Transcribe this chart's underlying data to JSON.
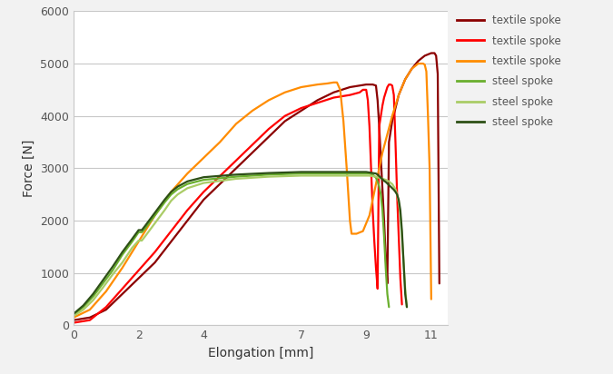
{
  "title": "",
  "xlabel": "Elongation [mm]",
  "ylabel": "Force [N]",
  "xlim": [
    0,
    11.5
  ],
  "ylim": [
    0,
    6000
  ],
  "xticks": [
    0,
    2,
    4,
    7,
    9,
    11
  ],
  "yticks": [
    0,
    1000,
    2000,
    3000,
    4000,
    5000,
    6000
  ],
  "series": [
    {
      "label": "textile spoke",
      "color": "#8B0000",
      "linewidth": 1.6,
      "points": [
        [
          0,
          100
        ],
        [
          0.5,
          150
        ],
        [
          1,
          300
        ],
        [
          1.5,
          600
        ],
        [
          2,
          900
        ],
        [
          2.5,
          1200
        ],
        [
          3,
          1600
        ],
        [
          3.5,
          2000
        ],
        [
          4,
          2400
        ],
        [
          4.5,
          2700
        ],
        [
          5,
          3000
        ],
        [
          5.5,
          3300
        ],
        [
          6,
          3600
        ],
        [
          6.5,
          3900
        ],
        [
          7,
          4100
        ],
        [
          7.5,
          4300
        ],
        [
          8,
          4450
        ],
        [
          8.5,
          4550
        ],
        [
          9.0,
          4600
        ],
        [
          9.1,
          4600
        ],
        [
          9.2,
          4600
        ],
        [
          9.3,
          4580
        ],
        [
          9.35,
          4300
        ],
        [
          9.4,
          3800
        ],
        [
          9.45,
          3200
        ],
        [
          9.5,
          2600
        ],
        [
          9.55,
          2000
        ],
        [
          9.6,
          1300
        ],
        [
          9.65,
          800
        ],
        [
          9.7,
          3500
        ],
        [
          9.8,
          3900
        ],
        [
          10.0,
          4400
        ],
        [
          10.2,
          4700
        ],
        [
          10.4,
          4900
        ],
        [
          10.6,
          5050
        ],
        [
          10.8,
          5150
        ],
        [
          11.0,
          5200
        ],
        [
          11.1,
          5200
        ],
        [
          11.15,
          5150
        ],
        [
          11.2,
          4800
        ],
        [
          11.25,
          800
        ]
      ]
    },
    {
      "label": "textile spoke",
      "color": "#FF0000",
      "linewidth": 1.6,
      "points": [
        [
          0,
          50
        ],
        [
          0.5,
          100
        ],
        [
          1,
          350
        ],
        [
          1.5,
          700
        ],
        [
          2,
          1050
        ],
        [
          2.5,
          1400
        ],
        [
          3,
          1800
        ],
        [
          3.5,
          2200
        ],
        [
          4,
          2550
        ],
        [
          4.5,
          2850
        ],
        [
          5,
          3150
        ],
        [
          5.5,
          3450
        ],
        [
          6,
          3750
        ],
        [
          6.5,
          4000
        ],
        [
          7,
          4150
        ],
        [
          7.5,
          4250
        ],
        [
          8,
          4350
        ],
        [
          8.5,
          4400
        ],
        [
          8.8,
          4450
        ],
        [
          8.9,
          4500
        ],
        [
          9.0,
          4500
        ],
        [
          9.05,
          4300
        ],
        [
          9.1,
          3800
        ],
        [
          9.15,
          3000
        ],
        [
          9.2,
          2200
        ],
        [
          9.25,
          1600
        ],
        [
          9.3,
          1100
        ],
        [
          9.35,
          700
        ],
        [
          9.4,
          3800
        ],
        [
          9.5,
          4200
        ],
        [
          9.55,
          4350
        ],
        [
          9.6,
          4450
        ],
        [
          9.65,
          4550
        ],
        [
          9.7,
          4600
        ],
        [
          9.75,
          4600
        ],
        [
          9.8,
          4580
        ],
        [
          9.85,
          4400
        ],
        [
          9.9,
          3500
        ],
        [
          9.95,
          2500
        ],
        [
          10.0,
          1700
        ],
        [
          10.05,
          900
        ],
        [
          10.1,
          400
        ]
      ]
    },
    {
      "label": "textile spoke",
      "color": "#FF8C00",
      "linewidth": 1.6,
      "points": [
        [
          0,
          150
        ],
        [
          0.5,
          300
        ],
        [
          1,
          650
        ],
        [
          1.5,
          1100
        ],
        [
          2,
          1600
        ],
        [
          2.5,
          2100
        ],
        [
          3,
          2550
        ],
        [
          3.5,
          2900
        ],
        [
          4,
          3200
        ],
        [
          4.5,
          3500
        ],
        [
          5,
          3850
        ],
        [
          5.5,
          4100
        ],
        [
          6,
          4300
        ],
        [
          6.5,
          4450
        ],
        [
          7,
          4550
        ],
        [
          7.5,
          4600
        ],
        [
          7.8,
          4620
        ],
        [
          8.0,
          4640
        ],
        [
          8.1,
          4640
        ],
        [
          8.2,
          4500
        ],
        [
          8.3,
          3900
        ],
        [
          8.4,
          3000
        ],
        [
          8.45,
          2500
        ],
        [
          8.5,
          2000
        ],
        [
          8.55,
          1750
        ],
        [
          8.7,
          1750
        ],
        [
          8.9,
          1800
        ],
        [
          9.1,
          2100
        ],
        [
          9.3,
          2700
        ],
        [
          9.5,
          3300
        ],
        [
          9.8,
          4000
        ],
        [
          10.0,
          4400
        ],
        [
          10.2,
          4700
        ],
        [
          10.4,
          4900
        ],
        [
          10.6,
          5000
        ],
        [
          10.75,
          5000
        ],
        [
          10.8,
          4980
        ],
        [
          10.85,
          4850
        ],
        [
          10.9,
          4000
        ],
        [
          10.95,
          3000
        ],
        [
          11.0,
          500
        ]
      ]
    },
    {
      "label": "steel spoke",
      "color": "#6AAF2E",
      "linewidth": 1.6,
      "points": [
        [
          0,
          200
        ],
        [
          0.3,
          350
        ],
        [
          0.6,
          550
        ],
        [
          0.9,
          800
        ],
        [
          1.2,
          1050
        ],
        [
          1.5,
          1350
        ],
        [
          1.8,
          1600
        ],
        [
          2.0,
          1780
        ],
        [
          2.1,
          1780
        ],
        [
          2.2,
          1850
        ],
        [
          2.5,
          2100
        ],
        [
          2.8,
          2350
        ],
        [
          3.0,
          2500
        ],
        [
          3.2,
          2600
        ],
        [
          3.5,
          2700
        ],
        [
          4.0,
          2780
        ],
        [
          5.0,
          2840
        ],
        [
          6.0,
          2880
        ],
        [
          7.0,
          2900
        ],
        [
          8.0,
          2900
        ],
        [
          8.5,
          2900
        ],
        [
          9.0,
          2900
        ],
        [
          9.1,
          2900
        ],
        [
          9.2,
          2880
        ],
        [
          9.3,
          2820
        ],
        [
          9.35,
          2750
        ],
        [
          9.4,
          2650
        ],
        [
          9.45,
          2500
        ],
        [
          9.5,
          2200
        ],
        [
          9.55,
          1700
        ],
        [
          9.6,
          1100
        ],
        [
          9.65,
          600
        ],
        [
          9.7,
          350
        ]
      ]
    },
    {
      "label": "steel spoke",
      "color": "#AACC66",
      "linewidth": 1.6,
      "points": [
        [
          0,
          180
        ],
        [
          0.3,
          300
        ],
        [
          0.6,
          480
        ],
        [
          0.9,
          720
        ],
        [
          1.2,
          970
        ],
        [
          1.5,
          1200
        ],
        [
          1.8,
          1480
        ],
        [
          2.0,
          1620
        ],
        [
          2.1,
          1620
        ],
        [
          2.2,
          1700
        ],
        [
          2.5,
          1950
        ],
        [
          2.8,
          2200
        ],
        [
          3.0,
          2380
        ],
        [
          3.2,
          2500
        ],
        [
          3.5,
          2620
        ],
        [
          4.0,
          2720
        ],
        [
          5.0,
          2800
        ],
        [
          6.0,
          2840
        ],
        [
          7.0,
          2860
        ],
        [
          8.0,
          2860
        ],
        [
          8.5,
          2860
        ],
        [
          9.0,
          2860
        ],
        [
          9.1,
          2860
        ],
        [
          9.2,
          2850
        ],
        [
          9.3,
          2840
        ],
        [
          9.4,
          2820
        ],
        [
          9.5,
          2800
        ],
        [
          9.6,
          2780
        ],
        [
          9.7,
          2750
        ],
        [
          9.75,
          2720
        ],
        [
          9.8,
          2700
        ],
        [
          9.85,
          2650
        ],
        [
          9.9,
          2600
        ],
        [
          9.95,
          2500
        ],
        [
          10.0,
          2350
        ],
        [
          10.05,
          2100
        ],
        [
          10.1,
          1700
        ],
        [
          10.15,
          1200
        ],
        [
          10.2,
          700
        ],
        [
          10.25,
          350
        ]
      ]
    },
    {
      "label": "steel spoke",
      "color": "#2D5016",
      "linewidth": 1.6,
      "points": [
        [
          0,
          220
        ],
        [
          0.3,
          380
        ],
        [
          0.6,
          600
        ],
        [
          0.9,
          860
        ],
        [
          1.2,
          1120
        ],
        [
          1.5,
          1400
        ],
        [
          1.8,
          1650
        ],
        [
          2.0,
          1820
        ],
        [
          2.1,
          1820
        ],
        [
          2.2,
          1900
        ],
        [
          2.5,
          2150
        ],
        [
          2.8,
          2400
        ],
        [
          3.0,
          2550
        ],
        [
          3.2,
          2650
        ],
        [
          3.5,
          2750
        ],
        [
          4.0,
          2830
        ],
        [
          5.0,
          2880
        ],
        [
          6.0,
          2910
        ],
        [
          7.0,
          2930
        ],
        [
          8.0,
          2930
        ],
        [
          8.5,
          2930
        ],
        [
          9.0,
          2930
        ],
        [
          9.1,
          2920
        ],
        [
          9.2,
          2910
        ],
        [
          9.3,
          2900
        ],
        [
          9.35,
          2880
        ],
        [
          9.4,
          2850
        ],
        [
          9.45,
          2820
        ],
        [
          9.5,
          2790
        ],
        [
          9.55,
          2760
        ],
        [
          9.6,
          2740
        ],
        [
          9.65,
          2710
        ],
        [
          9.7,
          2680
        ],
        [
          9.75,
          2650
        ],
        [
          9.8,
          2620
        ],
        [
          9.85,
          2590
        ],
        [
          9.9,
          2550
        ],
        [
          9.95,
          2500
        ],
        [
          10.0,
          2400
        ],
        [
          10.05,
          2200
        ],
        [
          10.1,
          1800
        ],
        [
          10.15,
          1200
        ],
        [
          10.2,
          600
        ],
        [
          10.25,
          350
        ]
      ]
    }
  ],
  "legend_labels": [
    "textile spoke",
    "textile spoke",
    "textile spoke",
    "steel spoke",
    "steel spoke",
    "steel spoke"
  ],
  "legend_colors": [
    "#8B0000",
    "#FF0000",
    "#FF8C00",
    "#6AAF2E",
    "#AACC66",
    "#2D5016"
  ],
  "background_color": "#F2F2F2",
  "plot_bg_color": "#FFFFFF",
  "grid_color": "#C8C8C8"
}
